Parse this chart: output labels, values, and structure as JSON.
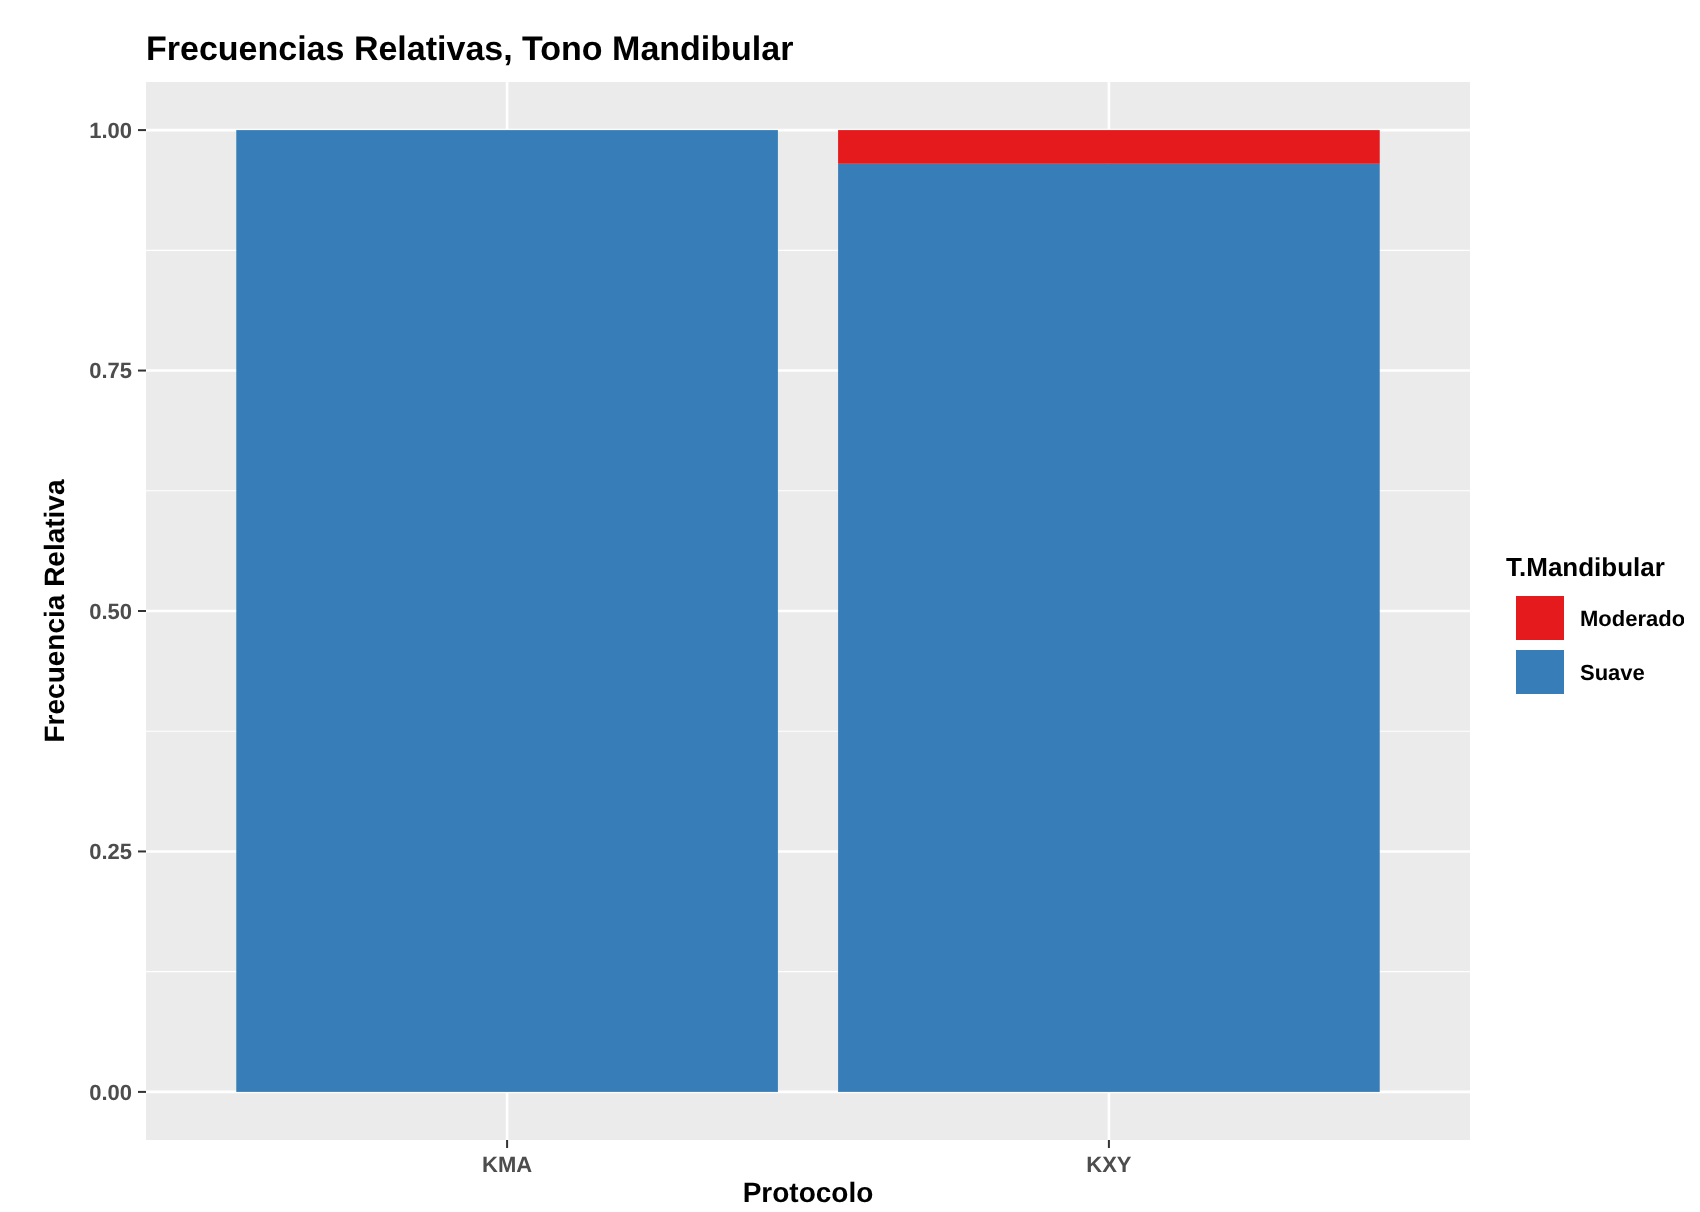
{
  "chart_data": {
    "type": "bar",
    "title": "Frecuencias Relativas, Tono Mandibular",
    "xlabel": "Protocolo",
    "ylabel": "Frecuencia Relativa",
    "legend_title": "T.Mandibular",
    "categories": [
      "KMA",
      "KXY"
    ],
    "stacked": true,
    "series": [
      {
        "name": "Suave",
        "color": "#377eb8",
        "values": [
          1,
          0.965
        ]
      },
      {
        "name": "Moderado",
        "color": "#e41a1c",
        "values": [
          0,
          0.035
        ]
      }
    ],
    "ylim": [
      -0.05,
      1.05
    ],
    "yticks": [
      {
        "value": 0,
        "label": "0.00"
      },
      {
        "value": 0.25,
        "label": "0.25"
      },
      {
        "value": 0.5,
        "label": "0.50"
      },
      {
        "value": 0.75,
        "label": "0.75"
      },
      {
        "value": 1,
        "label": "1.00"
      }
    ],
    "grid": true,
    "legend": "right"
  }
}
